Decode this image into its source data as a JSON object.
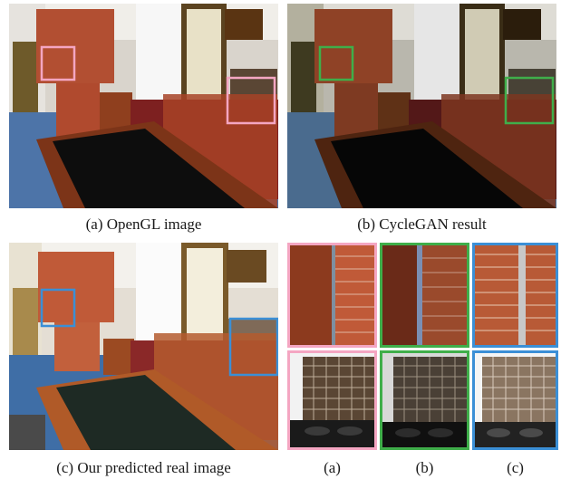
{
  "figure": {
    "panels": [
      {
        "id": "a",
        "caption": "(a) OpenGL image"
      },
      {
        "id": "b",
        "caption": "(b) CycleGAN result"
      },
      {
        "id": "c",
        "caption": "(c) Our predicted real image"
      }
    ],
    "crop_captions": [
      "(a)",
      "(b)",
      "(c)"
    ]
  },
  "colors": {
    "pink": "#f4a6c2",
    "green": "#3fae4a",
    "blue": "#3b8fd6",
    "brick": "#b5452a",
    "wood": "#8a3e1c"
  }
}
